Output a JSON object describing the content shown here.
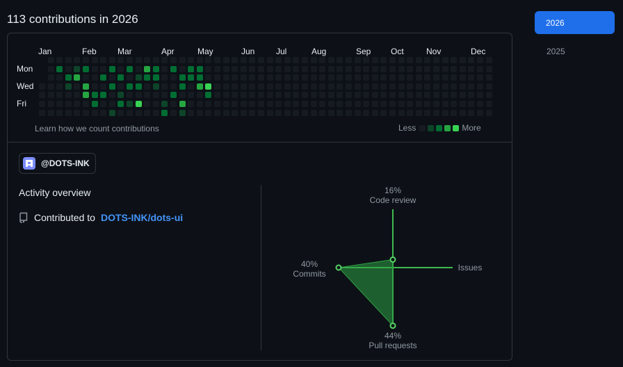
{
  "header": {
    "title": "113 contributions in 2026"
  },
  "graph": {
    "months": [
      "Jan",
      "Feb",
      "Mar",
      "Apr",
      "May",
      "Jun",
      "Jul",
      "Aug",
      "Sep",
      "Oct",
      "Nov",
      "Dec"
    ],
    "days": [
      "Mon",
      "Wed",
      "Fri"
    ],
    "learn_text": "Learn how we count contributions",
    "legend_less": "Less",
    "legend_more": "More",
    "colors": [
      "#161b22",
      "#0e4429",
      "#006d32",
      "#26a641",
      "#39d353"
    ],
    "weeks": 53,
    "active_weeks": 52,
    "levels": {
      "1": [
        [
          3,
          3
        ],
        [
          4,
          1
        ],
        [
          8,
          6
        ],
        [
          9,
          4
        ],
        [
          10,
          5
        ],
        [
          11,
          2
        ],
        [
          12,
          1
        ],
        [
          13,
          3
        ],
        [
          14,
          5
        ],
        [
          16,
          6
        ]
      ],
      "2": [
        [
          2,
          1
        ],
        [
          3,
          2
        ],
        [
          5,
          1
        ],
        [
          6,
          4
        ],
        [
          6,
          5
        ],
        [
          7,
          2
        ],
        [
          7,
          4
        ],
        [
          8,
          1
        ],
        [
          8,
          3
        ],
        [
          9,
          2
        ],
        [
          9,
          5
        ],
        [
          10,
          1
        ],
        [
          10,
          3
        ],
        [
          11,
          3
        ],
        [
          12,
          2
        ],
        [
          13,
          1
        ],
        [
          13,
          2
        ],
        [
          14,
          6
        ],
        [
          15,
          1
        ],
        [
          15,
          4
        ],
        [
          16,
          2
        ],
        [
          16,
          3
        ],
        [
          17,
          1
        ],
        [
          17,
          2
        ],
        [
          18,
          1
        ],
        [
          18,
          2
        ],
        [
          19,
          4
        ]
      ],
      "3": [
        [
          4,
          2
        ],
        [
          5,
          3
        ],
        [
          5,
          4
        ],
        [
          12,
          1
        ],
        [
          16,
          5
        ],
        [
          18,
          3
        ]
      ],
      "4": [
        [
          11,
          5
        ],
        [
          19,
          3
        ]
      ]
    }
  },
  "org": {
    "label": "@DOTS-INK"
  },
  "overview": {
    "title": "Activity overview",
    "contributed_prefix": "Contributed to",
    "repo": "DOTS-INK/dots-ui"
  },
  "radar": {
    "code_review": {
      "pct": "16%",
      "label": "Code review",
      "value": 16
    },
    "issues": {
      "pct": "",
      "label": "Issues",
      "value": 0
    },
    "pull_requests": {
      "pct": "44%",
      "label": "Pull requests",
      "value": 44
    },
    "commits": {
      "pct": "40%",
      "label": "Commits",
      "value": 40
    }
  },
  "years": {
    "selected": "2026",
    "other": "2025"
  }
}
